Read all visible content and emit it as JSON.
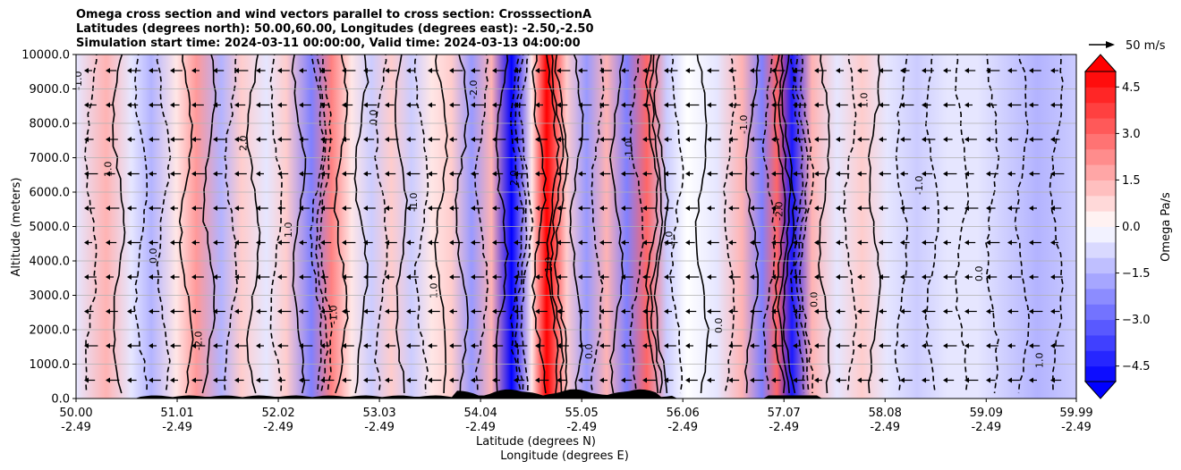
{
  "chart_data": {
    "type": "heatmap",
    "title": [
      "Omega cross section and wind vectors parallel to cross section: CrosssectionA",
      "Latitudes (degrees north): 50.00,60.00, Longitudes (degrees east): -2.50,-2.50",
      "Simulation start time: 2024-03-11 00:00:00, Valid time: 2024-03-13 04:00:00"
    ],
    "xlabel": [
      "Latitude (degrees N)",
      "Longitude (degrees E)"
    ],
    "ylabel": "Altitude (meters)",
    "x_ticks": [
      {
        "lat": "50.00",
        "lon": "-2.49",
        "value": 50.0
      },
      {
        "lat": "51.01",
        "lon": "-2.49",
        "value": 51.01
      },
      {
        "lat": "52.02",
        "lon": "-2.49",
        "value": 52.02
      },
      {
        "lat": "53.03",
        "lon": "-2.49",
        "value": 53.03
      },
      {
        "lat": "54.04",
        "lon": "-2.49",
        "value": 54.04
      },
      {
        "lat": "55.05",
        "lon": "-2.49",
        "value": 55.05
      },
      {
        "lat": "56.06",
        "lon": "-2.49",
        "value": 56.06
      },
      {
        "lat": "57.07",
        "lon": "-2.49",
        "value": 57.07
      },
      {
        "lat": "58.08",
        "lon": "-2.49",
        "value": 58.08
      },
      {
        "lat": "59.09",
        "lon": "-2.49",
        "value": 59.09
      },
      {
        "lat": "59.99",
        "lon": "-2.49",
        "value": 59.99
      }
    ],
    "xlim": [
      50.0,
      59.99
    ],
    "y_ticks": [
      "0.0",
      "1000.0",
      "2000.0",
      "3000.0",
      "4000.0",
      "5000.0",
      "6000.0",
      "7000.0",
      "8000.0",
      "9000.0",
      "10000.0"
    ],
    "ylim": [
      0,
      10000
    ],
    "grid": "horizontal",
    "colorbar": {
      "label": "Omega Pa/s",
      "ticks": [
        "4.5",
        "3.0",
        "1.5",
        "0.0",
        "−1.5",
        "−3.0",
        "−4.5"
      ],
      "range": [
        -5.0,
        5.0
      ],
      "extend": "both",
      "colormap": "bwr"
    },
    "quiver_key": {
      "label": "50 m/s",
      "value": 50
    },
    "bands": [
      {
        "lat": 50.0,
        "omega": -0.6
      },
      {
        "lat": 50.3,
        "omega": 1.4
      },
      {
        "lat": 50.55,
        "omega": -0.5
      },
      {
        "lat": 50.75,
        "omega": -1.6
      },
      {
        "lat": 51.0,
        "omega": 0.6
      },
      {
        "lat": 51.2,
        "omega": 1.9
      },
      {
        "lat": 51.45,
        "omega": -1.4
      },
      {
        "lat": 51.65,
        "omega": 1.2
      },
      {
        "lat": 51.9,
        "omega": -0.4
      },
      {
        "lat": 52.1,
        "omega": 1.0
      },
      {
        "lat": 52.35,
        "omega": -2.6
      },
      {
        "lat": 52.55,
        "omega": 2.4
      },
      {
        "lat": 52.75,
        "omega": 0.3
      },
      {
        "lat": 52.95,
        "omega": -1.2
      },
      {
        "lat": 53.15,
        "omega": 0.8
      },
      {
        "lat": 53.35,
        "omega": -0.9
      },
      {
        "lat": 53.55,
        "omega": 0.4
      },
      {
        "lat": 53.75,
        "omega": 1.2
      },
      {
        "lat": 53.95,
        "omega": -2.0
      },
      {
        "lat": 54.15,
        "omega": 1.6
      },
      {
        "lat": 54.35,
        "omega": -4.8
      },
      {
        "lat": 54.55,
        "omega": 0.6
      },
      {
        "lat": 54.7,
        "omega": 4.9
      },
      {
        "lat": 54.9,
        "omega": 1.2
      },
      {
        "lat": 55.1,
        "omega": -1.8
      },
      {
        "lat": 55.3,
        "omega": 1.4
      },
      {
        "lat": 55.5,
        "omega": -2.4
      },
      {
        "lat": 55.7,
        "omega": 3.0
      },
      {
        "lat": 55.9,
        "omega": -0.8
      },
      {
        "lat": 56.1,
        "omega": 0.2
      },
      {
        "lat": 56.4,
        "omega": -0.7
      },
      {
        "lat": 56.65,
        "omega": 1.3
      },
      {
        "lat": 56.85,
        "omega": -2.3
      },
      {
        "lat": 57.0,
        "omega": 2.8
      },
      {
        "lat": 57.15,
        "omega": -4.3
      },
      {
        "lat": 57.35,
        "omega": 1.6
      },
      {
        "lat": 57.6,
        "omega": -0.3
      },
      {
        "lat": 57.85,
        "omega": 1.2
      },
      {
        "lat": 58.1,
        "omega": -0.5
      },
      {
        "lat": 58.4,
        "omega": -1.2
      },
      {
        "lat": 58.7,
        "omega": -0.6
      },
      {
        "lat": 59.0,
        "omega": -0.3
      },
      {
        "lat": 59.3,
        "omega": -0.8
      },
      {
        "lat": 59.6,
        "omega": -1.3
      },
      {
        "lat": 59.99,
        "omega": -0.9
      }
    ],
    "contour_labels": [
      "-1.0",
      "1.0",
      "0.0",
      "-2.0",
      "2.0",
      "1.0",
      "-1.0",
      "0.0",
      "-1.0",
      "1.0",
      "-2.0",
      "2.0",
      "1.0",
      "0.0",
      "-1.0",
      "1.0",
      "0.0",
      "-1.0",
      "-2.0",
      "0.0",
      "1.0",
      "-1.0",
      "0.0",
      "1.0"
    ]
  }
}
